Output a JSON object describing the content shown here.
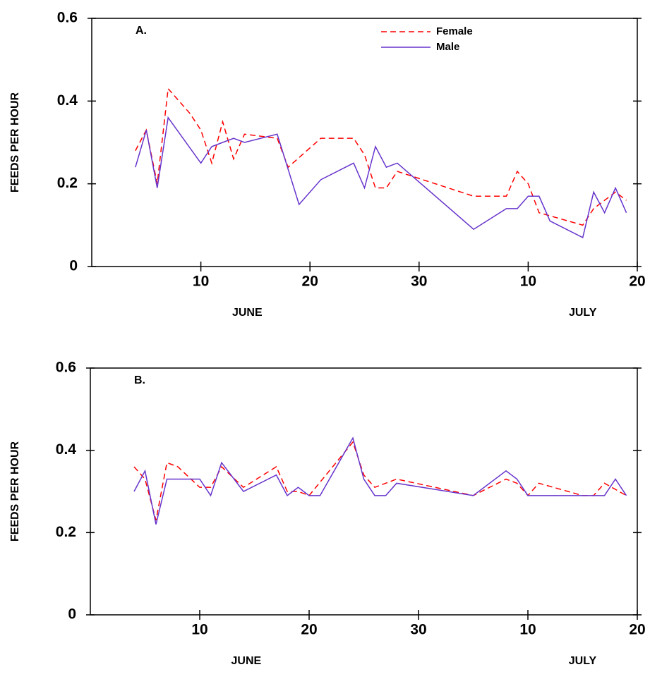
{
  "chart_data": [
    {
      "type": "line",
      "panel_label": "A.",
      "ylabel": "FEEDS PER HOUR",
      "xlim": [
        0,
        50
      ],
      "ylim": [
        0,
        0.6
      ],
      "xticks": [
        10,
        20,
        30,
        {
          "value": 40,
          "label": "10"
        },
        {
          "value": 50,
          "label": "20"
        }
      ],
      "yticks": [
        0,
        0.2,
        0.4,
        0.6
      ],
      "month_labels": [
        "JUNE",
        "JULY"
      ],
      "legend": "upper right",
      "series": [
        {
          "name": "Female",
          "color": "#ff0000",
          "line_style": "dashed",
          "x": [
            4,
            5,
            6,
            7,
            9,
            10,
            11,
            12,
            13,
            14,
            17,
            18,
            21,
            24,
            25,
            26,
            27,
            28,
            35,
            38,
            39,
            40,
            41,
            45,
            46,
            48,
            49
          ],
          "values": [
            0.28,
            0.33,
            0.2,
            0.43,
            0.37,
            0.33,
            0.25,
            0.35,
            0.26,
            0.32,
            0.31,
            0.24,
            0.31,
            0.31,
            0.27,
            0.19,
            0.19,
            0.23,
            0.17,
            0.17,
            0.23,
            0.2,
            0.13,
            0.1,
            0.14,
            0.18,
            0.16
          ]
        },
        {
          "name": "Male",
          "color": "#6633cc",
          "line_style": "solid",
          "x": [
            4,
            5,
            6,
            7,
            10,
            11,
            12,
            13,
            14,
            17,
            19,
            21,
            24,
            25,
            26,
            27,
            28,
            35,
            38,
            39,
            40,
            41,
            42,
            45,
            46,
            47,
            48,
            49
          ],
          "values": [
            0.24,
            0.33,
            0.19,
            0.36,
            0.25,
            0.29,
            0.3,
            0.31,
            0.3,
            0.32,
            0.15,
            0.21,
            0.25,
            0.19,
            0.29,
            0.24,
            0.25,
            0.09,
            0.14,
            0.14,
            0.17,
            0.17,
            0.11,
            0.07,
            0.18,
            0.13,
            0.19,
            0.13
          ]
        }
      ]
    },
    {
      "type": "line",
      "panel_label": "B.",
      "ylabel": "FEEDS PER HOUR",
      "xlim": [
        0,
        50
      ],
      "ylim": [
        0,
        0.6
      ],
      "xticks": [
        10,
        20,
        30,
        {
          "value": 40,
          "label": "10"
        },
        {
          "value": 50,
          "label": "20"
        }
      ],
      "yticks": [
        0,
        0.2,
        0.4,
        0.6
      ],
      "month_labels": [
        "JUNE",
        "JULY"
      ],
      "series": [
        {
          "color": "#ff0000",
          "line_style": "dashed",
          "x": [
            4,
            5,
            6,
            7,
            8,
            10,
            11,
            12,
            14,
            17,
            18,
            19,
            20,
            24,
            25,
            26,
            28,
            35,
            38,
            39,
            40,
            41,
            45,
            46,
            47,
            49
          ],
          "values": [
            0.36,
            0.33,
            0.23,
            0.37,
            0.36,
            0.31,
            0.31,
            0.36,
            0.31,
            0.36,
            0.3,
            0.3,
            0.29,
            0.42,
            0.34,
            0.31,
            0.33,
            0.29,
            0.33,
            0.32,
            0.29,
            0.32,
            0.29,
            0.29,
            0.32,
            0.29
          ]
        },
        {
          "color": "#6633cc",
          "line_style": "solid",
          "x": [
            4,
            5,
            6,
            7,
            10,
            11,
            12,
            14,
            17,
            18,
            19,
            20,
            21,
            24,
            25,
            26,
            27,
            28,
            35,
            38,
            39,
            40,
            47,
            48,
            49
          ],
          "values": [
            0.3,
            0.35,
            0.22,
            0.33,
            0.33,
            0.29,
            0.37,
            0.3,
            0.34,
            0.29,
            0.31,
            0.29,
            0.29,
            0.43,
            0.33,
            0.29,
            0.29,
            0.32,
            0.29,
            0.35,
            0.33,
            0.29,
            0.29,
            0.33,
            0.29
          ]
        }
      ]
    }
  ]
}
